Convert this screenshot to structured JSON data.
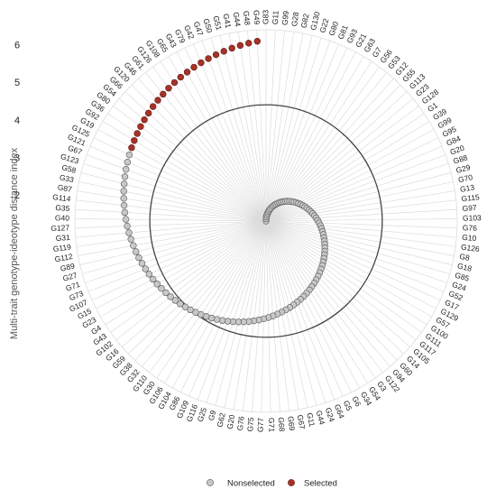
{
  "chart_data": {
    "type": "scatter",
    "subtype": "radar",
    "title": "",
    "ylabel": "Multi-trait genotype-ideotype distance index",
    "radial_ticks": [
      2,
      3,
      4,
      5,
      6
    ],
    "radial_range": [
      1.3,
      6.4
    ],
    "cutoff_circle_value": 4.4,
    "outer_circle_value": 6.4,
    "genotypes": [
      "G83",
      "G11",
      "G99",
      "G28",
      "G82",
      "G130",
      "G22",
      "G80",
      "G81",
      "G93",
      "G21",
      "G63",
      "G7",
      "G56",
      "G53",
      "G12",
      "G55",
      "G113",
      "G23",
      "G128",
      "G1",
      "G39",
      "G99",
      "G95",
      "G84",
      "G20",
      "G88",
      "G29",
      "G70",
      "G13",
      "G115",
      "G97",
      "G103",
      "G76",
      "G10",
      "G126",
      "G8",
      "G18",
      "G85",
      "G24",
      "G52",
      "G17",
      "G129",
      "G57",
      "G100",
      "G111",
      "G117",
      "G105",
      "G14",
      "G60",
      "G94",
      "G122",
      "G3",
      "G54",
      "G34",
      "G6",
      "G5",
      "G64",
      "G24",
      "G44",
      "G11",
      "G67",
      "G69",
      "G68",
      "G71",
      "G77",
      "G75",
      "G76",
      "G20",
      "G62",
      "G9",
      "G25",
      "G116",
      "G109",
      "G86",
      "G104",
      "G106",
      "G30",
      "G110",
      "G32",
      "G38",
      "G59",
      "G16",
      "G102",
      "G43",
      "G4",
      "G23",
      "G15",
      "G107",
      "G73",
      "G71",
      "G27",
      "G89",
      "G112",
      "G119",
      "G31",
      "G127",
      "G40",
      "G35",
      "G114",
      "G87",
      "G33",
      "G58",
      "G123",
      "G67",
      "G121",
      "G125",
      "G19",
      "G92",
      "G36",
      "G80",
      "G54",
      "G66",
      "G120",
      "G46",
      "G61",
      "G126",
      "G108",
      "G65",
      "G43",
      "G79",
      "G42",
      "G47",
      "G50",
      "G51",
      "G41",
      "G44",
      "G48",
      "G49"
    ],
    "selected_count": 22,
    "distance_start": 1.3,
    "distance_end": 6.1,
    "legend": [
      {
        "label": "Nonselected",
        "color": "#c8c8c8",
        "stroke": "#555555"
      },
      {
        "label": "Selected",
        "color": "#a83228",
        "stroke": "#5a1a14"
      }
    ],
    "grid": true,
    "legend_position": "bottom"
  }
}
